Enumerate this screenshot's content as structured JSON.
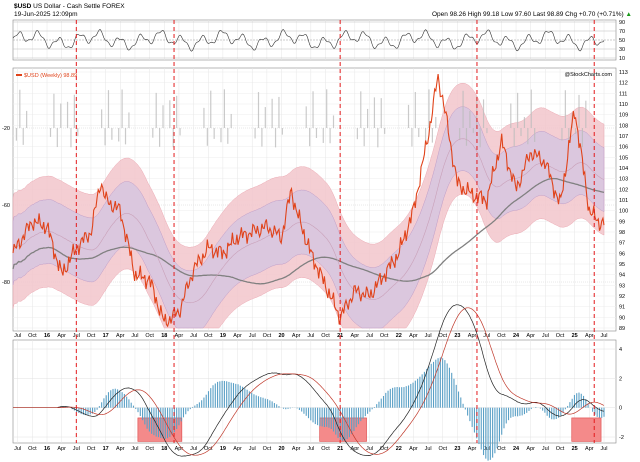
{
  "header": {
    "symbol": "$USD",
    "name": "US Dollar - Cash Settle",
    "exchange": "FOREX",
    "date": "19-Jun-2025 12:09pm",
    "open": "98.26",
    "high": "99.18",
    "low": "97.60",
    "last": "98.89",
    "chg": "+0.70 (+0.71%)",
    "labels": {
      "open": "Open",
      "high": "High",
      "low": "Low",
      "last": "Last",
      "chg": "Chg"
    },
    "watermark": "@StockCharts.com",
    "chg_arrow": "▲"
  },
  "colors": {
    "price": "#e0431a",
    "outer_band": "#f3c6cc",
    "inner_band": "#d9c7e0",
    "ma": "#808080",
    "vline": "#e31a1c",
    "macd_hist": "#5aa0c6",
    "macd_box": "#f48a8a"
  },
  "legend": "$USD (Weekly) 98.89",
  "left_ticks": [
    "-20",
    "-60",
    "-80"
  ],
  "right_ticks": [
    "113",
    "112",
    "111",
    "110",
    "109",
    "108",
    "107",
    "106",
    "105",
    "104",
    "103",
    "102",
    "101",
    "100",
    "99",
    "98",
    "97",
    "96",
    "95",
    "94",
    "93",
    "92",
    "91",
    "90",
    "89"
  ],
  "rsi_ticks": [
    "90",
    "70",
    "50",
    "30",
    "10"
  ],
  "macd_ticks": [
    "4",
    "2",
    "0",
    "-2"
  ],
  "x_tick_labels": [
    "Jul",
    "Oct",
    "16",
    "Apr",
    "Jul",
    "Oct",
    "17",
    "Apr",
    "Jul",
    "Oct",
    "18",
    "Apr",
    "Jul",
    "Oct",
    "19",
    "Apr",
    "Jul",
    "Oct",
    "20",
    "Apr",
    "Jul",
    "Oct",
    "21",
    "Apr",
    "Jul",
    "Oct",
    "22",
    "Apr",
    "Jul",
    "Oct",
    "23",
    "Apr",
    "Jul",
    "Oct",
    "24",
    "Apr",
    "Jul",
    "Oct",
    "25",
    "Apr",
    "Jul"
  ],
  "chart_data": {
    "type": "line",
    "title": "$USD US Dollar - Cash Settle FOREX",
    "x": [
      "2015-06",
      "2015-10",
      "2016-01",
      "2016-04",
      "2016-07",
      "2016-10",
      "2016-12",
      "2017-01",
      "2017-04",
      "2017-07",
      "2017-10",
      "2018-01",
      "2018-04",
      "2018-07",
      "2018-10",
      "2019-01",
      "2019-04",
      "2019-07",
      "2019-10",
      "2020-01",
      "2020-03",
      "2020-04",
      "2020-07",
      "2020-10",
      "2021-01",
      "2021-04",
      "2021-07",
      "2021-10",
      "2022-01",
      "2022-04",
      "2022-07",
      "2022-09",
      "2022-10",
      "2023-01",
      "2023-04",
      "2023-07",
      "2023-10",
      "2024-01",
      "2024-04",
      "2024-07",
      "2024-10",
      "2025-01",
      "2025-04",
      "2025-06"
    ],
    "series": [
      {
        "name": "$USD (Weekly) 98.89",
        "values": [
          96.0,
          99.0,
          98.5,
          94.0,
          96.5,
          98.0,
          102.8,
          101.0,
          100.0,
          94.0,
          93.5,
          89.5,
          90.5,
          94.5,
          96.5,
          96.0,
          97.5,
          98.0,
          98.5,
          97.5,
          102.0,
          100.0,
          96.0,
          93.0,
          90.0,
          92.5,
          92.0,
          94.0,
          96.0,
          100.0,
          107.0,
          112.5,
          110.5,
          102.5,
          101.5,
          101.0,
          106.5,
          102.0,
          105.5,
          104.5,
          100.5,
          109.5,
          100.0,
          98.89
        ]
      }
    ],
    "yrange_right": [
      89,
      113
    ],
    "vertical_markers": [
      "2016-07",
      "2018-03",
      "2021-01",
      "2023-05",
      "2025-05"
    ],
    "rsi_range": [
      10,
      90
    ],
    "macd_range": [
      -2,
      4
    ]
  }
}
